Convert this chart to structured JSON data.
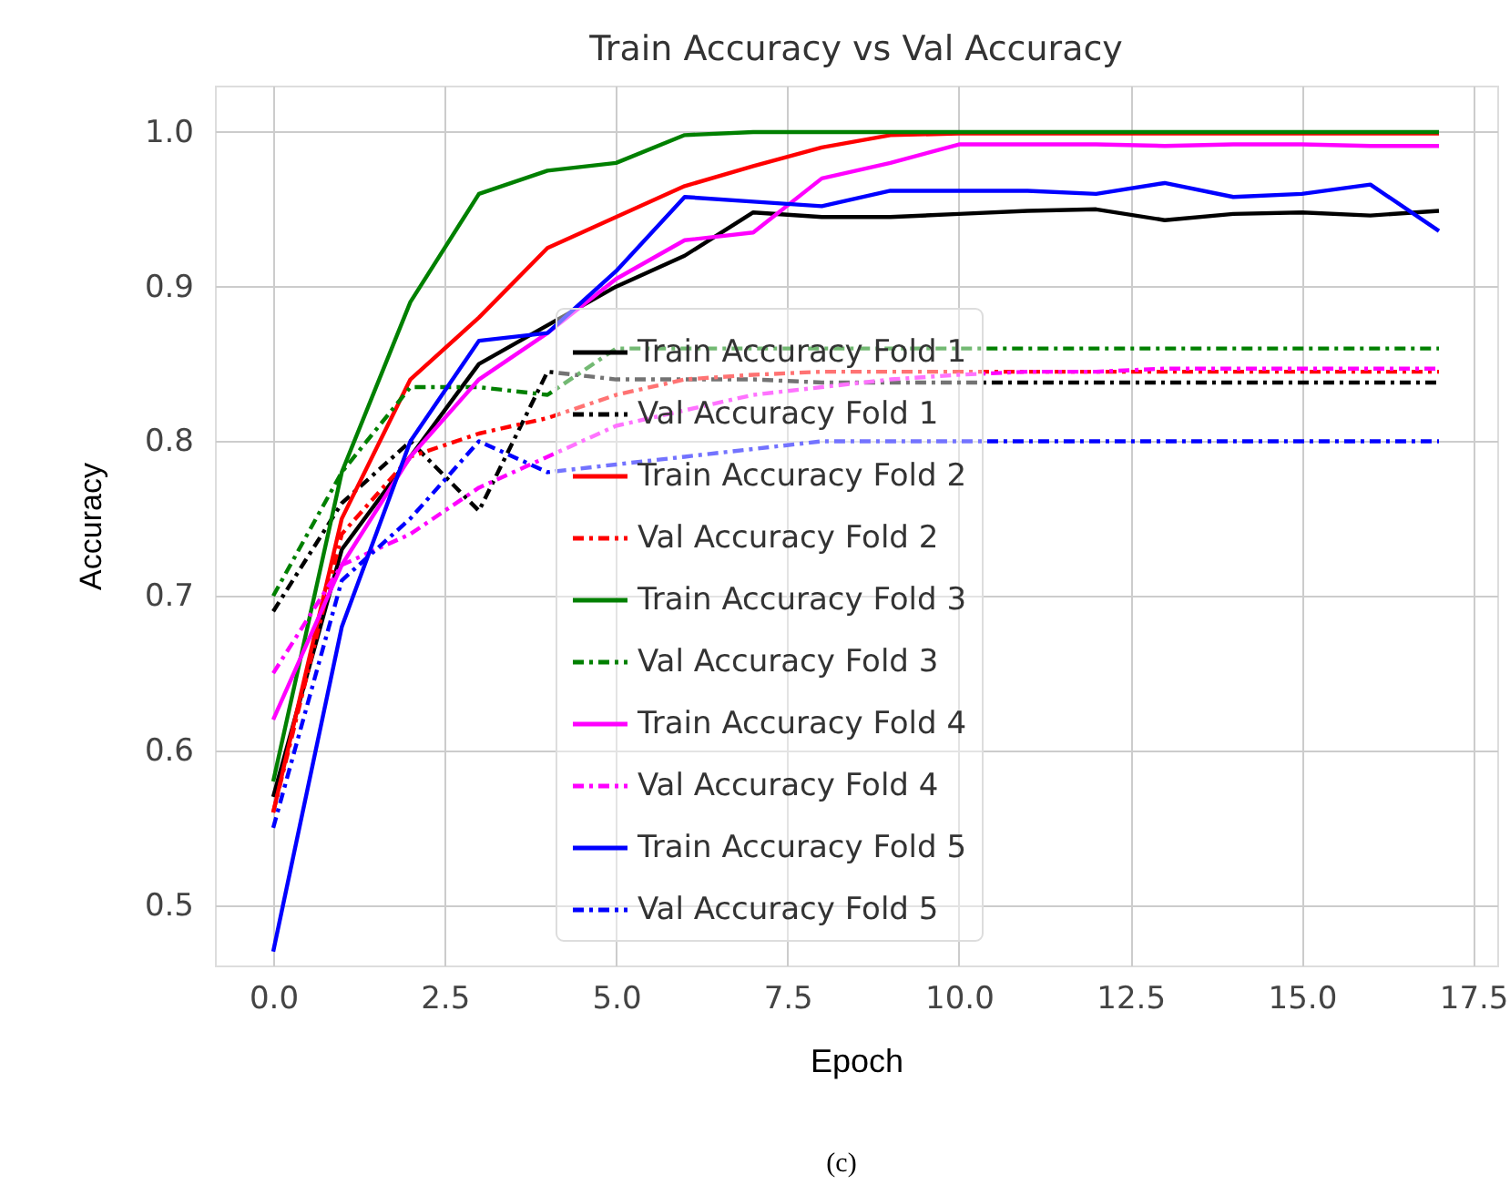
{
  "chart_data": {
    "type": "line",
    "title": "Train Accuracy vs Val Accuracy",
    "xlabel": "Epoch",
    "ylabel": "Accuracy",
    "x": [
      0,
      1,
      2,
      3,
      4,
      5,
      6,
      7,
      8,
      9,
      10,
      11,
      12,
      13,
      14,
      15,
      16,
      17
    ],
    "xlim": [
      -0.85,
      17.85
    ],
    "xticks": [
      {
        "value": 0,
        "label": "0.0"
      },
      2.5,
      {
        "value": 5,
        "label": "5.0"
      },
      7.5,
      {
        "value": 10,
        "label": "10.0"
      },
      12.5,
      {
        "value": 15,
        "label": "15.0"
      },
      17.5
    ],
    "ylim": [
      0.461,
      1.03
    ],
    "yticks": [
      0.5,
      0.6,
      0.7,
      0.8,
      0.9,
      {
        "value": 1,
        "label": "1.0"
      }
    ],
    "grid": true,
    "legend": "bottom",
    "marker": "none",
    "annotations": [
      "(c)"
    ],
    "series": [
      {
        "name": "Train Accuracy Fold 1",
        "color": "#000000",
        "line_style": "solid",
        "values": [
          0.57,
          0.73,
          0.79,
          0.85,
          0.875,
          0.9,
          0.92,
          0.948,
          0.945,
          0.945,
          0.947,
          0.949,
          0.95,
          0.943,
          0.947,
          0.948,
          0.946,
          0.949
        ]
      },
      {
        "name": "Val Accuracy Fold 1",
        "color": "#000000",
        "line_style": "dashed",
        "values": [
          0.69,
          0.76,
          0.8,
          0.755,
          0.845,
          0.84,
          0.84,
          0.84,
          0.838,
          0.838,
          0.838,
          0.838,
          0.838,
          0.838,
          0.838,
          0.838,
          0.838,
          0.838
        ]
      },
      {
        "name": "Train Accuracy Fold 2",
        "color": "#ff0000",
        "line_style": "solid",
        "values": [
          0.56,
          0.75,
          0.84,
          0.88,
          0.925,
          0.945,
          0.965,
          0.978,
          0.99,
          0.998,
          0.999,
          0.999,
          0.999,
          0.999,
          0.999,
          0.999,
          0.999,
          0.999
        ]
      },
      {
        "name": "Val Accuracy Fold 2",
        "color": "#ff0000",
        "line_style": "dashed",
        "values": [
          0.56,
          0.74,
          0.79,
          0.805,
          0.815,
          0.83,
          0.84,
          0.843,
          0.845,
          0.845,
          0.845,
          0.845,
          0.845,
          0.845,
          0.845,
          0.845,
          0.845,
          0.845
        ]
      },
      {
        "name": "Train Accuracy Fold 3",
        "color": "#008000",
        "line_style": "solid",
        "values": [
          0.58,
          0.78,
          0.89,
          0.96,
          0.975,
          0.98,
          0.998,
          1.0,
          1.0,
          1.0,
          1.0,
          1.0,
          1.0,
          1.0,
          1.0,
          1.0,
          1.0,
          1.0
        ]
      },
      {
        "name": "Val Accuracy Fold 3",
        "color": "#008000",
        "line_style": "dashed",
        "values": [
          0.7,
          0.78,
          0.835,
          0.835,
          0.83,
          0.86,
          0.86,
          0.86,
          0.86,
          0.86,
          0.86,
          0.86,
          0.86,
          0.86,
          0.86,
          0.86,
          0.86,
          0.86
        ]
      },
      {
        "name": "Train Accuracy Fold 4",
        "color": "#ff00ff",
        "line_style": "solid",
        "values": [
          0.62,
          0.72,
          0.79,
          0.84,
          0.87,
          0.905,
          0.93,
          0.935,
          0.97,
          0.98,
          0.992,
          0.992,
          0.992,
          0.991,
          0.992,
          0.992,
          0.991,
          0.991
        ]
      },
      {
        "name": "Val Accuracy Fold 4",
        "color": "#ff00ff",
        "line_style": "dashed",
        "values": [
          0.65,
          0.72,
          0.74,
          0.77,
          0.79,
          0.81,
          0.82,
          0.83,
          0.835,
          0.84,
          0.843,
          0.845,
          0.845,
          0.847,
          0.847,
          0.847,
          0.847,
          0.847
        ]
      },
      {
        "name": "Train Accuracy Fold 5",
        "color": "#0000ff",
        "line_style": "solid",
        "values": [
          0.47,
          0.68,
          0.8,
          0.865,
          0.87,
          0.91,
          0.958,
          0.955,
          0.952,
          0.962,
          0.962,
          0.962,
          0.96,
          0.967,
          0.958,
          0.96,
          0.966,
          0.936
        ]
      },
      {
        "name": "Val Accuracy Fold 5",
        "color": "#0000ff",
        "line_style": "dashed",
        "values": [
          0.55,
          0.71,
          0.75,
          0.8,
          0.78,
          0.785,
          0.79,
          0.795,
          0.8,
          0.8,
          0.8,
          0.8,
          0.8,
          0.8,
          0.8,
          0.8,
          0.8,
          0.8
        ]
      }
    ]
  }
}
